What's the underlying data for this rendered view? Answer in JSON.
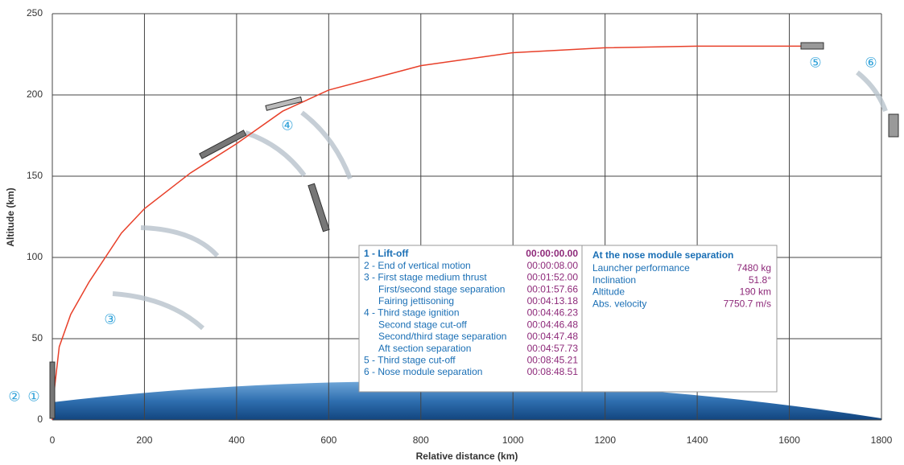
{
  "chart_data": {
    "type": "line",
    "x": [
      0,
      5,
      15,
      40,
      80,
      150,
      200,
      300,
      400,
      500,
      600,
      800,
      1000,
      1200,
      1400,
      1650
    ],
    "values": [
      0,
      20,
      45,
      65,
      85,
      115,
      130,
      152,
      170,
      190,
      203,
      218,
      226,
      229,
      230,
      230
    ],
    "color": "#e8402a",
    "xlabel": "Relative distance (km)",
    "ylabel": "Altitude (km)",
    "xlim": [
      0,
      1800
    ],
    "ylim": [
      0,
      250
    ],
    "xticks": [
      0,
      200,
      400,
      600,
      800,
      1000,
      1200,
      1400,
      1600,
      1800
    ],
    "yticks": [
      0,
      50,
      100,
      150,
      200,
      250
    ],
    "grid": true,
    "markers": [
      "②",
      "①",
      "③",
      "④",
      "⑤",
      "⑥"
    ],
    "events": [
      {
        "label": "1 - Lift-off",
        "time": "00:00:00.00"
      },
      {
        "label": "2 - End of vertical motion",
        "time": "00:00:08.00"
      },
      {
        "label": "3 - First stage medium thrust",
        "time": "00:01:52.00"
      },
      {
        "label": "First/second stage separation",
        "time": "00:01:57.66"
      },
      {
        "label": "Fairing jettisoning",
        "time": "00:04:13.18"
      },
      {
        "label": "4 - Third stage ignition",
        "time": "00:04:46.23"
      },
      {
        "label": "Second stage cut-off",
        "time": "00:04:46.48"
      },
      {
        "label": "Second/third stage separation",
        "time": "00:04:47.48"
      },
      {
        "label": "Aft section separation",
        "time": "00:04:57.73"
      },
      {
        "label": "5 - Third stage cut-off",
        "time": "00:08:45.21"
      },
      {
        "label": "6 - Nose module separation",
        "time": "00:08:48.51"
      }
    ],
    "separation": {
      "title": "At the nose module separation",
      "rows": [
        {
          "label": "Launcher performance",
          "value": "7480 kg"
        },
        {
          "label": "Inclination",
          "value": "51.8°"
        },
        {
          "label": "Altitude",
          "value": "190 km"
        },
        {
          "label": "Abs. velocity",
          "value": "7750.7 m/s"
        }
      ]
    }
  }
}
